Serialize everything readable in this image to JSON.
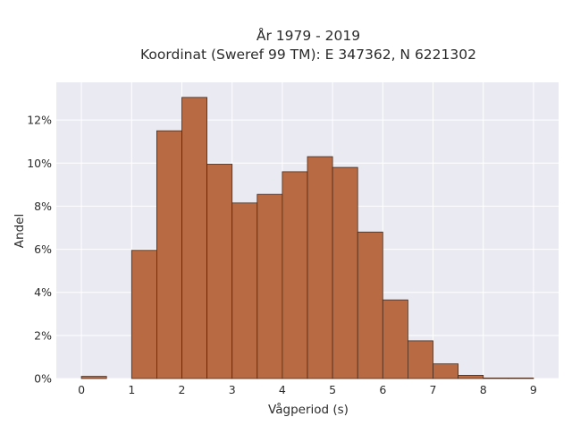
{
  "chart_data": {
    "type": "bar",
    "title_lines": [
      "År 1979 - 2019",
      "Koordinat (Sweref 99 TM): E 347362, N 6221302"
    ],
    "xlabel": "Vågperiod (s)",
    "ylabel": "Andel",
    "bin_width": 0.5,
    "bin_starts": [
      0,
      0.5,
      1,
      1.5,
      2,
      2.5,
      3,
      3.5,
      4,
      4.5,
      5,
      5.5,
      6,
      6.5,
      7,
      7.5,
      8,
      8.5
    ],
    "values": [
      0.1,
      0,
      5.95,
      11.5,
      13.05,
      9.95,
      8.15,
      8.55,
      9.6,
      10.3,
      9.8,
      6.8,
      3.65,
      1.75,
      0.68,
      0.15,
      0.02,
      0.01
    ],
    "x_ticks": [
      0,
      1,
      2,
      3,
      4,
      5,
      6,
      7,
      8,
      9
    ],
    "x_tick_labels": [
      "0",
      "1",
      "2",
      "3",
      "4",
      "5",
      "6",
      "7",
      "8",
      "9"
    ],
    "y_ticks": [
      0,
      2,
      4,
      6,
      8,
      10,
      12
    ],
    "y_tick_labels": [
      "0%",
      "2%",
      "4%",
      "6%",
      "8%",
      "10%",
      "12%"
    ],
    "xlim": [
      -0.5,
      9.5
    ],
    "ylim": [
      0,
      13.75
    ],
    "grid": true,
    "colors": {
      "bar_fill": "#b86b43",
      "bar_edge": "#4a2a1a",
      "plot_bg": "#e9eaf2",
      "grid": "#ffffff"
    }
  }
}
